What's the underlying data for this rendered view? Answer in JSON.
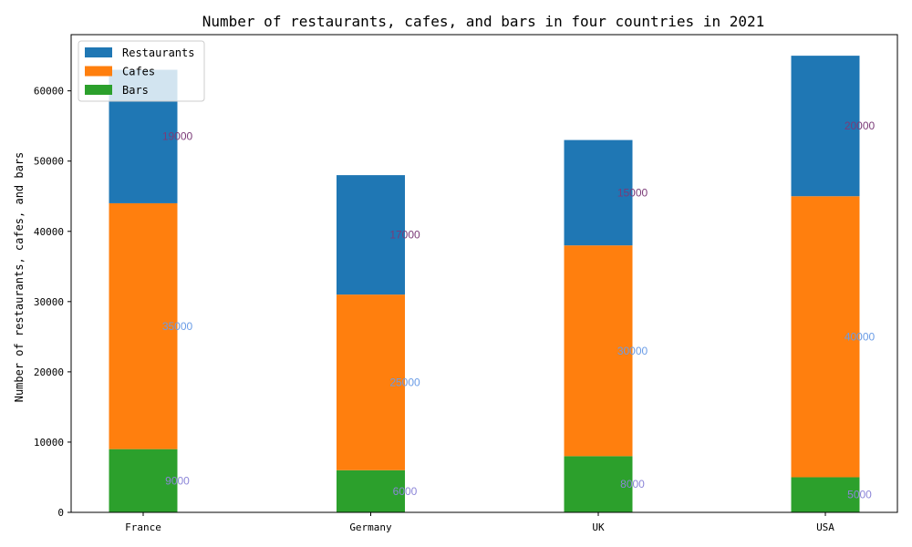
{
  "chart_data": {
    "type": "bar",
    "stacked": true,
    "title": "Number of restaurants, cafes, and bars in four countries in 2021",
    "xlabel": "",
    "ylabel": "Number of restaurants, cafes, and bars",
    "categories": [
      "France",
      "Germany",
      "UK",
      "USA"
    ],
    "ylim": [
      0,
      68000
    ],
    "yticks": [
      0,
      10000,
      20000,
      30000,
      40000,
      50000,
      60000
    ],
    "ytick_labels": [
      "0",
      "10000",
      "20000",
      "30000",
      "40000",
      "50000",
      "60000"
    ],
    "grid": false,
    "legend_position": "top-left",
    "series": [
      {
        "name": "Bars",
        "values": [
          9000,
          6000,
          8000,
          5000
        ],
        "color": "#2ca02c",
        "label_color": "#8c86d8"
      },
      {
        "name": "Cafes",
        "values": [
          35000,
          25000,
          30000,
          40000
        ],
        "color": "#ff7f0e",
        "label_color": "#6a9ce6"
      },
      {
        "name": "Restaurants",
        "values": [
          19000,
          17000,
          15000,
          20000
        ],
        "color": "#1f77b4",
        "label_color": "#7b3b78"
      }
    ],
    "data_labels": [
      [
        "9000",
        "6000",
        "8000",
        "5000"
      ],
      [
        "35000",
        "25000",
        "30000",
        "40000"
      ],
      [
        "19000",
        "17000",
        "15000",
        "20000"
      ]
    ],
    "legend_entries": [
      {
        "name": "Restaurants",
        "color": "#1f77b4"
      },
      {
        "name": "Cafes",
        "color": "#ff7f0e"
      },
      {
        "name": "Bars",
        "color": "#2ca02c"
      }
    ]
  }
}
